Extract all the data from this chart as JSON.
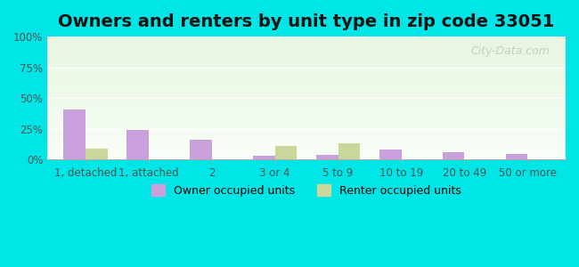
{
  "title": "Owners and renters by unit type in zip code 33051",
  "categories": [
    "1, detached",
    "1, attached",
    "2",
    "3 or 4",
    "5 to 9",
    "10 to 19",
    "20 to 49",
    "50 or more"
  ],
  "owner_values": [
    41,
    24,
    16,
    3,
    4,
    8,
    6,
    5
  ],
  "renter_values": [
    9,
    0,
    0,
    11,
    13,
    0,
    0,
    0
  ],
  "owner_color": "#c9a0dc",
  "renter_color": "#c8d89a",
  "background_color": "#00e5e5",
  "plot_bg_top": "#e8f5e8",
  "plot_bg_bottom": "#f0fff0",
  "ylim": [
    0,
    100
  ],
  "yticks": [
    0,
    25,
    50,
    75,
    100
  ],
  "ytick_labels": [
    "0%",
    "25%",
    "50%",
    "75%",
    "100%"
  ],
  "bar_width": 0.35,
  "legend_owner": "Owner occupied units",
  "legend_renter": "Renter occupied units",
  "watermark": "City-Data.com",
  "title_fontsize": 14,
  "tick_fontsize": 8.5,
  "legend_fontsize": 9
}
